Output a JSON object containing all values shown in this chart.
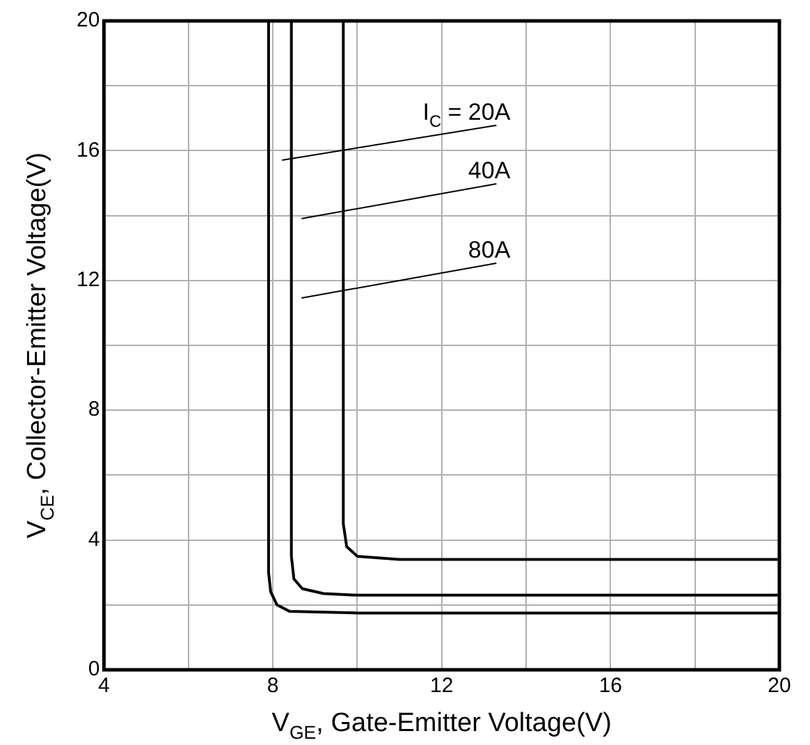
{
  "chart_data": {
    "type": "line",
    "xlabel": "V$_{GE}$, Gate-Emitter Voltage(V)",
    "ylabel": "V$_{CE}$, Collector-Emitter Voltage(V)",
    "xlim": [
      4,
      20
    ],
    "ylim": [
      0,
      20
    ],
    "xticks": [
      4,
      {
        "value": 6,
        "label": null
      },
      8,
      {
        "value": 10,
        "label": null
      },
      12,
      {
        "value": 14,
        "label": null
      },
      16,
      {
        "value": 18,
        "label": null
      },
      20
    ],
    "yticks": [
      0,
      {
        "value": 2,
        "label": null
      },
      4,
      {
        "value": 6,
        "label": null
      },
      8,
      {
        "value": 10,
        "label": null
      },
      12,
      {
        "value": 14,
        "label": null
      },
      16,
      {
        "value": 18,
        "label": null
      },
      20
    ],
    "grid": true,
    "legend": false,
    "marker": "none",
    "line_style": "solid",
    "series": [
      {
        "color": "#000000",
        "x": [
          7.9,
          7.9,
          7.95,
          8.1,
          8.4,
          10,
          20
        ],
        "values": [
          20,
          3,
          2.4,
          2,
          1.8,
          1.75,
          1.75
        ]
      },
      {
        "color": "#000000",
        "x": [
          8.44,
          8.44,
          8.5,
          8.7,
          9.2,
          10,
          20
        ],
        "values": [
          20,
          3.5,
          2.8,
          2.5,
          2.35,
          2.3,
          2.3
        ]
      },
      {
        "color": "#000000",
        "x": [
          9.67,
          9.67,
          9.75,
          10,
          11,
          20
        ],
        "values": [
          20,
          4.5,
          3.8,
          3.5,
          3.4,
          3.4
        ]
      }
    ],
    "annotations": [
      "I$_{C}$ = 20A",
      "40A",
      "80A"
    ]
  }
}
